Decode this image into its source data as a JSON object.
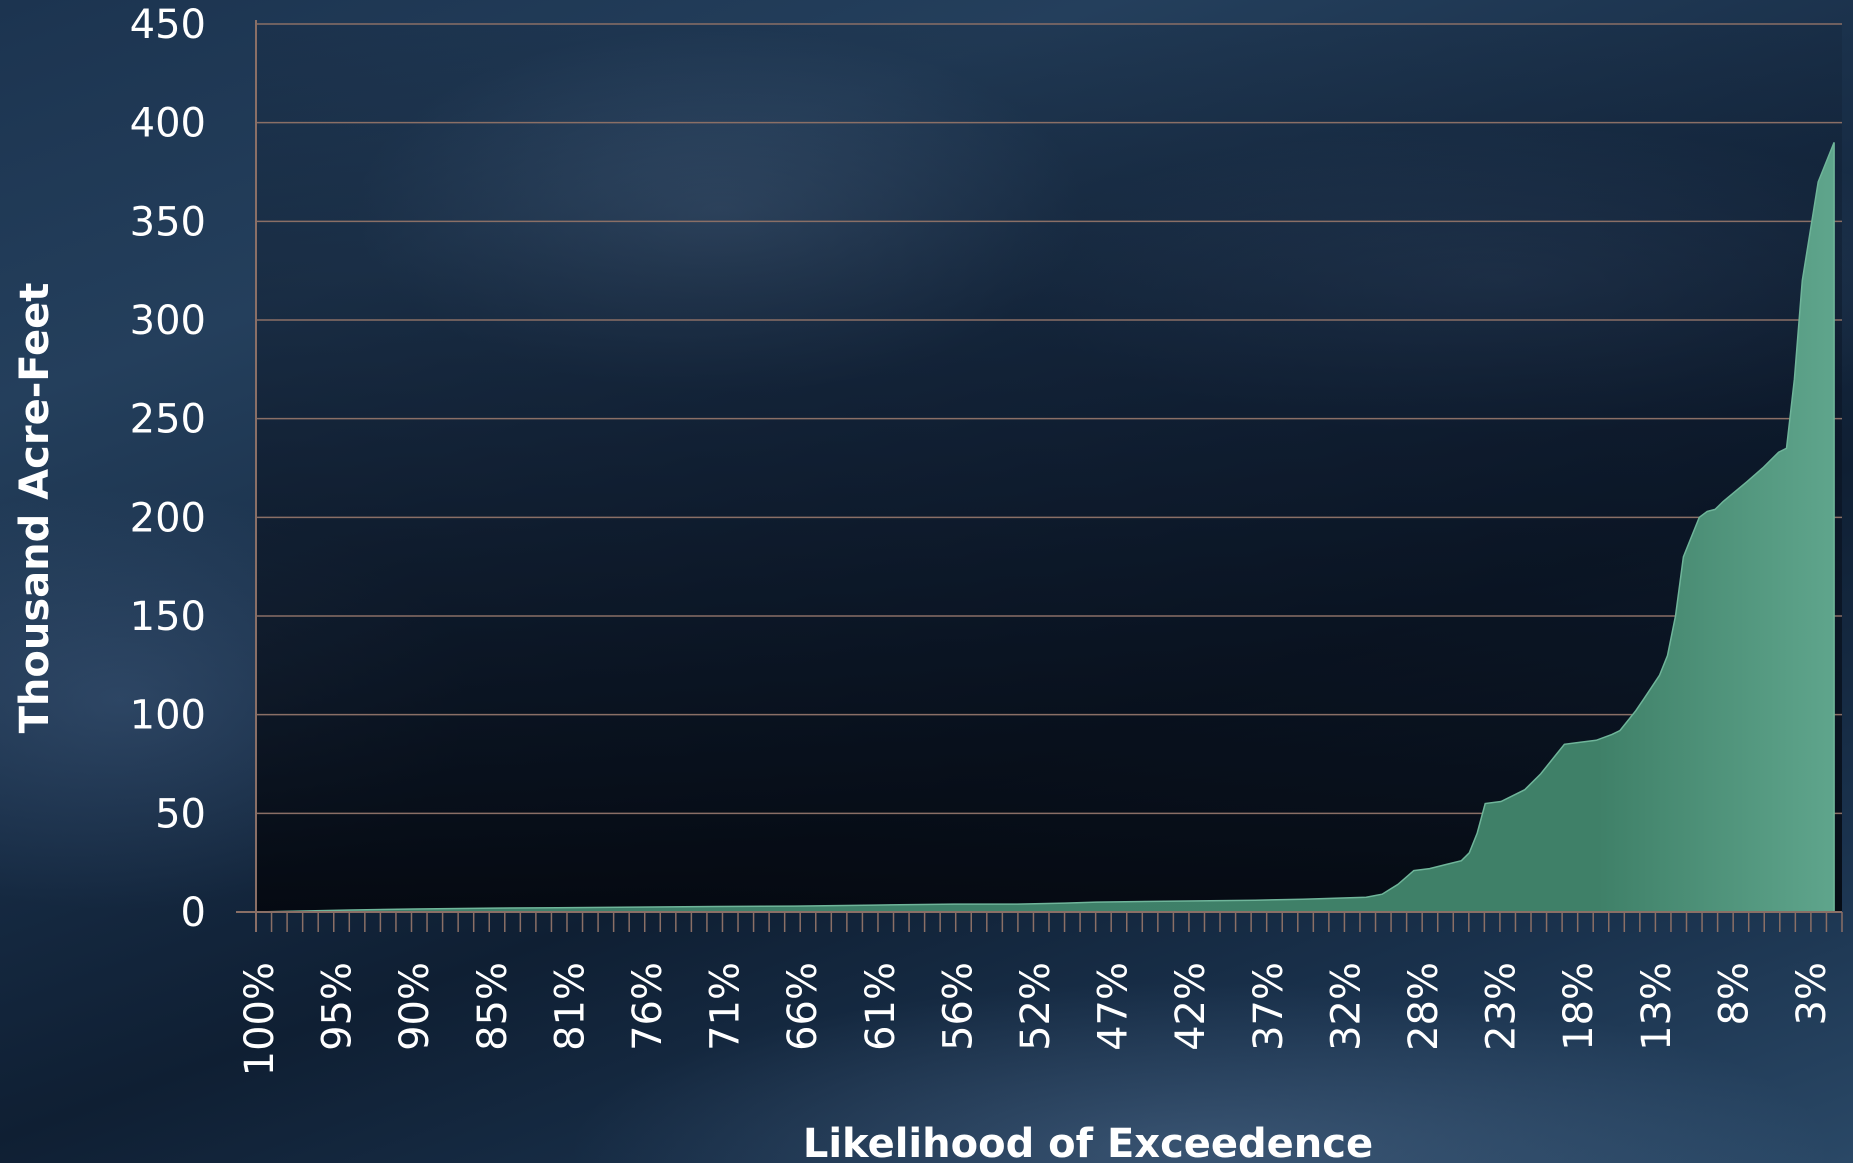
{
  "chart_data": {
    "type": "area",
    "ylabel": "Thousand Acre-Feet",
    "xlabel": "Likelihood of Exceedence",
    "ylim": [
      0,
      450
    ],
    "y_ticks": [
      "0",
      "50",
      "100",
      "150",
      "200",
      "250",
      "300",
      "350",
      "400",
      "450"
    ],
    "x_tick_labels": [
      "100%",
      "95%",
      "90%",
      "85%",
      "81%",
      "76%",
      "71%",
      "66%",
      "61%",
      "56%",
      "52%",
      "47%",
      "42%",
      "37%",
      "32%",
      "28%",
      "23%",
      "18%",
      "13%",
      "8%",
      "3%"
    ],
    "grid": true,
    "series": [
      {
        "points": [
          [
            100,
            0
          ],
          [
            97,
            0.5
          ],
          [
            94,
            1
          ],
          [
            90,
            1.5
          ],
          [
            85,
            2
          ],
          [
            81,
            2.2
          ],
          [
            76,
            2.5
          ],
          [
            71,
            2.8
          ],
          [
            66,
            3
          ],
          [
            61,
            3.5
          ],
          [
            56,
            4
          ],
          [
            52,
            4
          ],
          [
            49,
            4.5
          ],
          [
            47,
            5
          ],
          [
            42,
            5.5
          ],
          [
            37,
            6
          ],
          [
            34,
            6.5
          ],
          [
            32,
            7
          ],
          [
            30,
            7.5
          ],
          [
            29,
            9
          ],
          [
            28,
            14
          ],
          [
            27,
            21
          ],
          [
            26,
            22
          ],
          [
            25,
            24
          ],
          [
            24,
            26
          ],
          [
            23.5,
            30
          ],
          [
            23,
            40
          ],
          [
            22.5,
            55
          ],
          [
            21.5,
            56
          ],
          [
            20,
            62
          ],
          [
            19,
            70
          ],
          [
            18,
            80
          ],
          [
            17.5,
            85
          ],
          [
            16.5,
            86
          ],
          [
            15.5,
            87
          ],
          [
            14.5,
            90
          ],
          [
            14,
            92
          ],
          [
            13,
            102
          ],
          [
            12.5,
            108
          ],
          [
            11.5,
            120
          ],
          [
            11,
            130
          ],
          [
            10.5,
            150
          ],
          [
            10,
            180
          ],
          [
            9.5,
            190
          ],
          [
            9,
            200
          ],
          [
            8.5,
            203
          ],
          [
            8,
            204
          ],
          [
            7.5,
            208
          ],
          [
            6,
            218
          ],
          [
            5,
            225
          ],
          [
            4,
            233
          ],
          [
            3.5,
            235
          ],
          [
            3,
            270
          ],
          [
            2.5,
            320
          ],
          [
            1.5,
            370
          ],
          [
            0.5,
            390
          ]
        ],
        "color": "#4e9a80"
      }
    ]
  }
}
